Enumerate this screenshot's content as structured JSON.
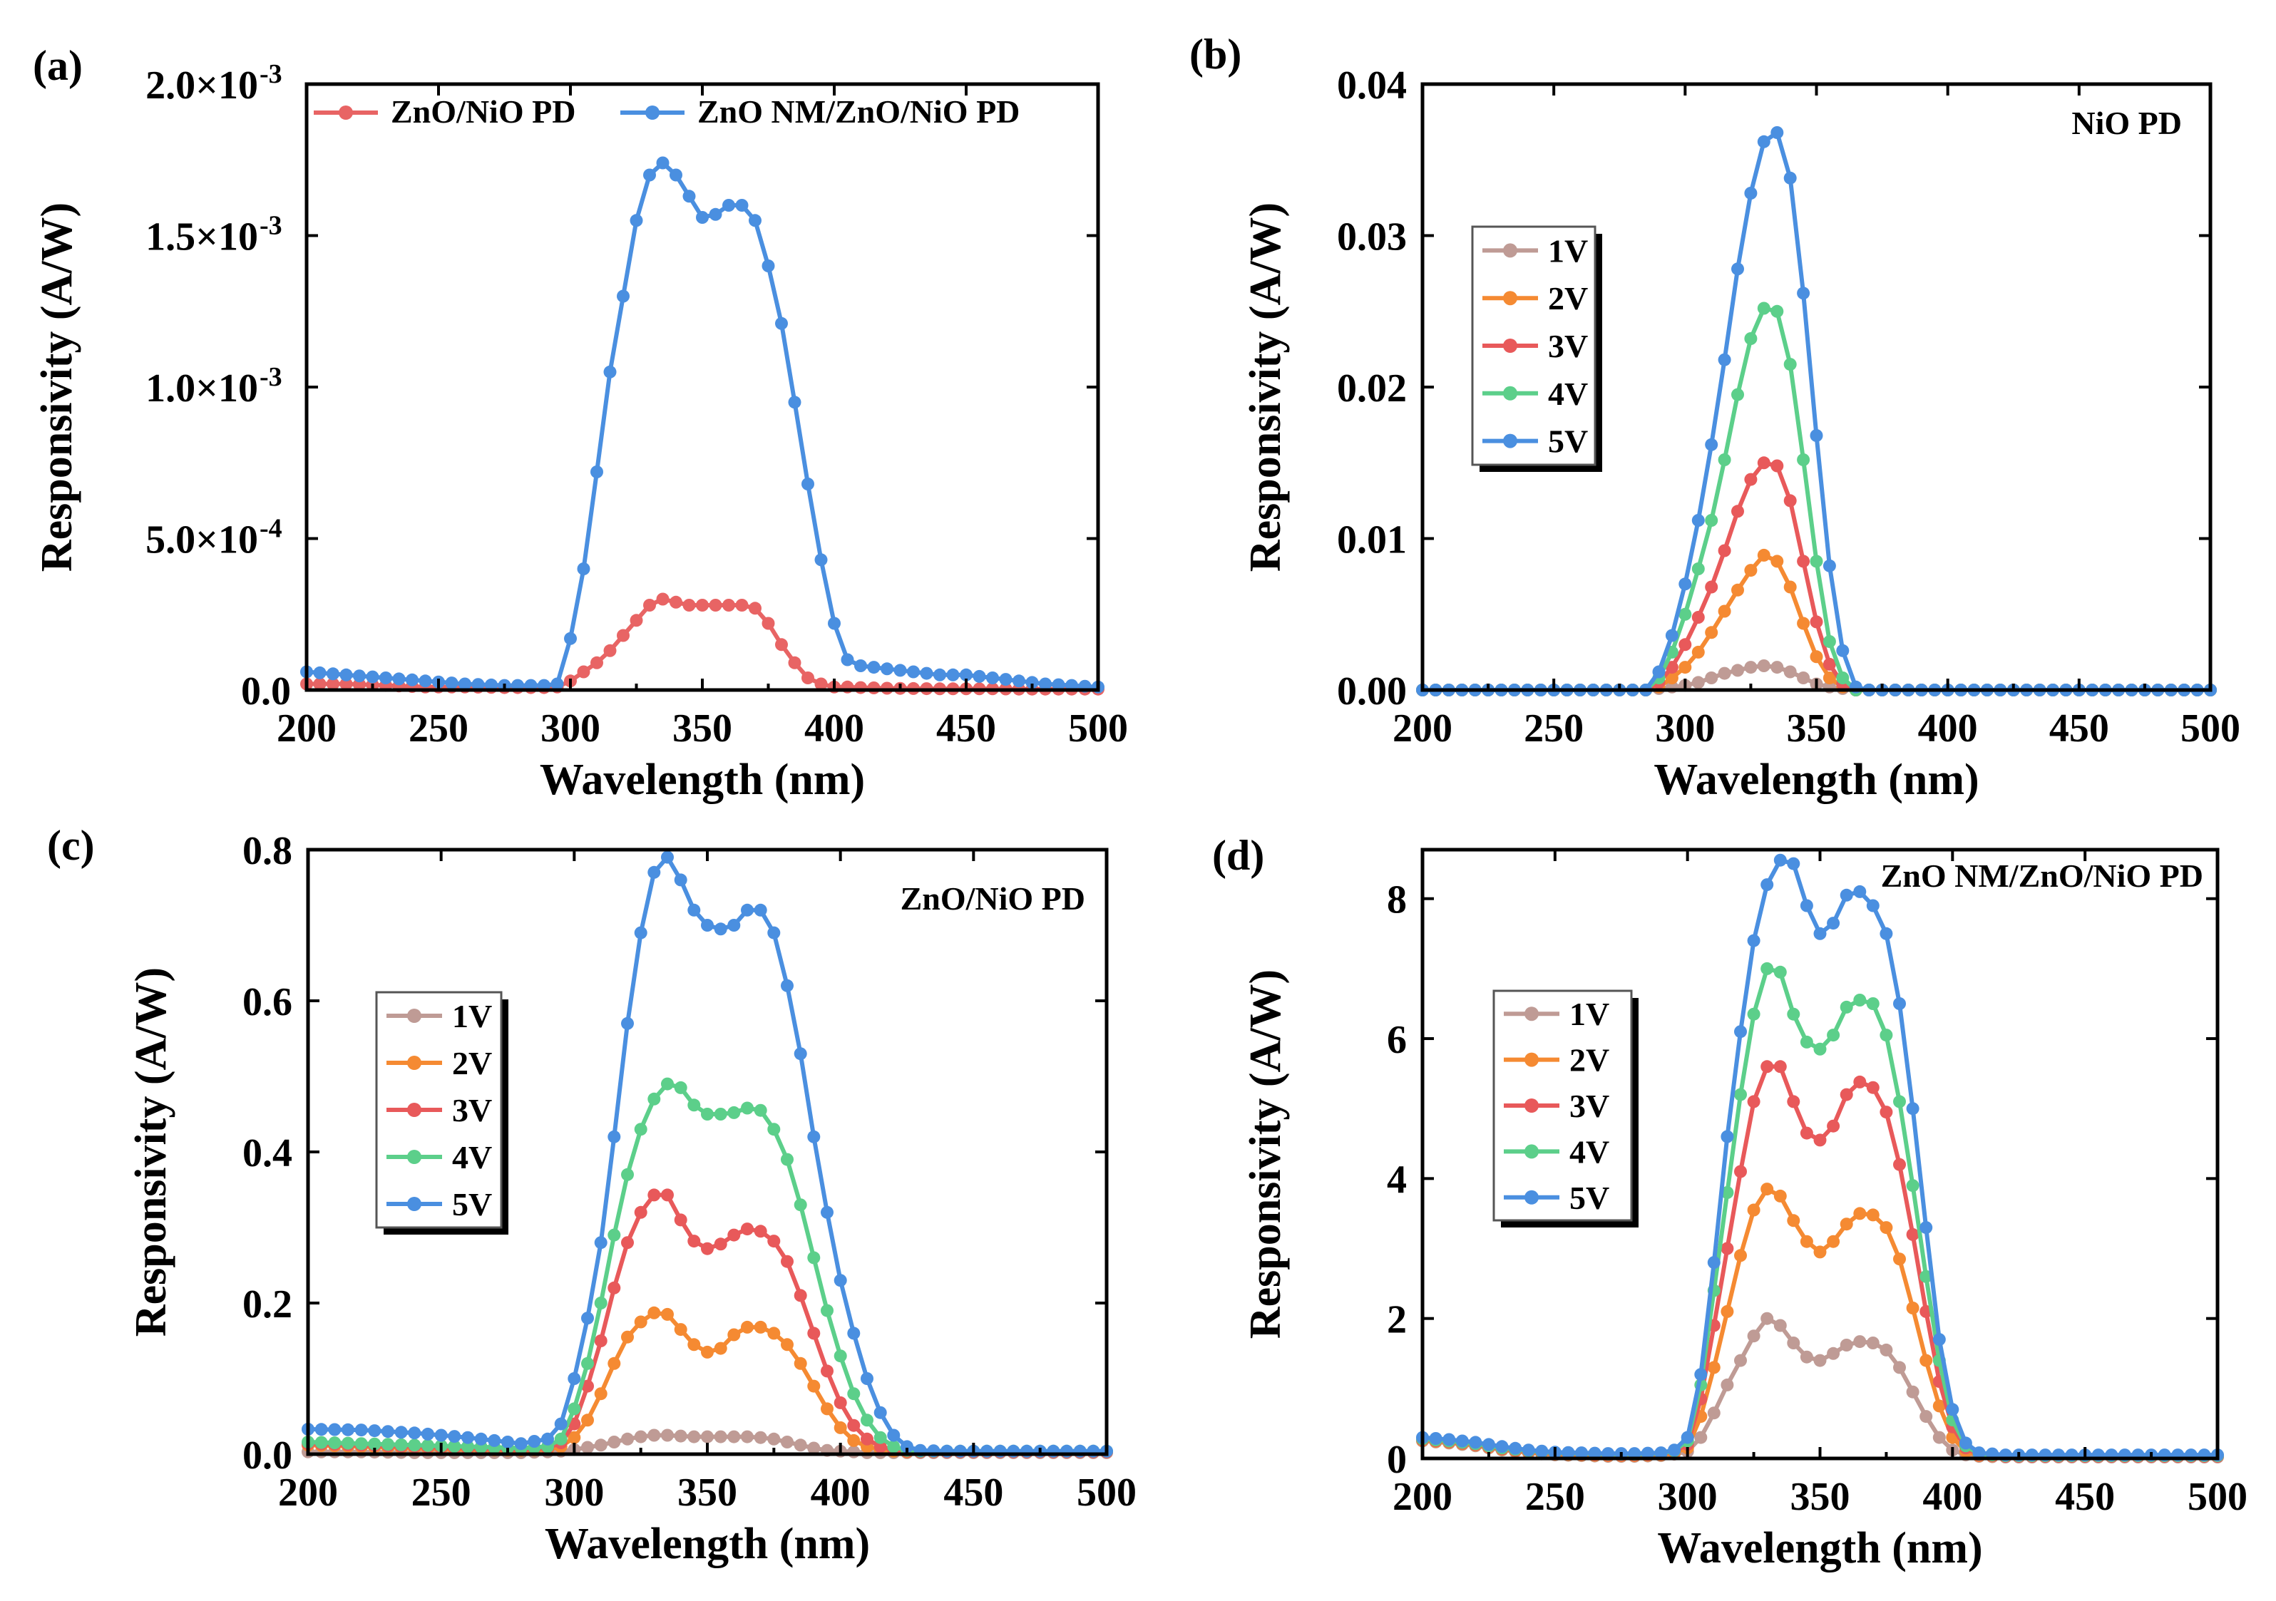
{
  "figure": {
    "panels": [
      {
        "label": "(a)",
        "xlabel": "Wavelength (nm)",
        "ylabel": "Responsivity (A/W)",
        "annotation": "",
        "xticks": [
          "200",
          "250",
          "300",
          "350",
          "400",
          "450",
          "500"
        ],
        "yticks": [
          "0.0",
          "5.0×10",
          "1.0×10",
          "1.5×10",
          "2.0×10"
        ],
        "ytick_exponents": [
          "",
          "-4",
          "-3",
          "-3",
          "-3"
        ],
        "legend": [
          "ZnO/NiO PD",
          "ZnO NM/ZnO/NiO PD"
        ]
      },
      {
        "label": "(b)",
        "xlabel": "Wavelength (nm)",
        "ylabel": "Responsivity (A/W)",
        "annotation": "NiO PD",
        "xticks": [
          "200",
          "250",
          "300",
          "350",
          "400",
          "450",
          "500"
        ],
        "yticks": [
          "0.00",
          "0.01",
          "0.02",
          "0.03",
          "0.04"
        ],
        "ytick_exponents": [
          "",
          "",
          "",
          "",
          ""
        ],
        "legend": [
          "1V",
          "2V",
          "3V",
          "4V",
          "5V"
        ]
      },
      {
        "label": "(c)",
        "xlabel": "Wavelength (nm)",
        "ylabel": "Responsivity (A/W)",
        "annotation": "ZnO/NiO PD",
        "xticks": [
          "200",
          "250",
          "300",
          "350",
          "400",
          "450",
          "500"
        ],
        "yticks": [
          "0.0",
          "0.2",
          "0.4",
          "0.6",
          "0.8"
        ],
        "ytick_exponents": [
          "",
          "",
          "",
          "",
          ""
        ],
        "legend": [
          "1V",
          "2V",
          "3V",
          "4V",
          "5V"
        ]
      },
      {
        "label": "(d)",
        "xlabel": "Wavelength (nm)",
        "ylabel": "Responsivity (A/W)",
        "annotation": "ZnO NM/ZnO/NiO PD",
        "xticks": [
          "200",
          "250",
          "300",
          "350",
          "400",
          "450",
          "500"
        ],
        "yticks": [
          "0",
          "2",
          "4",
          "6",
          "8"
        ],
        "ytick_exponents": [
          "",
          "",
          "",
          "",
          ""
        ],
        "legend": [
          "1V",
          "2V",
          "3V",
          "4V",
          "5V"
        ]
      }
    ]
  },
  "colors": {
    "1V": "#bf9b95",
    "2V": "#f58a32",
    "3V": "#e8595a",
    "4V": "#5ccf8a",
    "5V": "#4a8fe0",
    "ZnO/NiO PD": "#e86464",
    "ZnO NM/ZnO/NiO PD": "#4a8fe0"
  },
  "chart_data": [
    {
      "type": "line",
      "title": "(a)",
      "xlabel": "Wavelength (nm)",
      "ylabel": "Responsivity (A/W)",
      "xlim": [
        200,
        500
      ],
      "ylim": [
        0,
        0.002
      ],
      "x": [
        200,
        215,
        230,
        245,
        260,
        275,
        290,
        295,
        300,
        305,
        310,
        315,
        320,
        325,
        330,
        335,
        340,
        345,
        350,
        355,
        360,
        365,
        370,
        375,
        380,
        385,
        390,
        395,
        400,
        405,
        410,
        420,
        430,
        440,
        450,
        460,
        470,
        480,
        490,
        500
      ],
      "series": [
        {
          "name": "ZnO/NiO PD",
          "values": [
            2e-05,
            2e-05,
            1.5e-05,
            1e-05,
            1e-05,
            8e-06,
            8e-06,
            1e-05,
            3e-05,
            6e-05,
            9e-05,
            0.00013,
            0.00018,
            0.00023,
            0.00028,
            0.0003,
            0.00029,
            0.00028,
            0.00028,
            0.00028,
            0.00028,
            0.00028,
            0.00027,
            0.00022,
            0.00015,
            9e-05,
            4e-05,
            2e-05,
            1e-05,
            1e-05,
            8e-06,
            6e-06,
            5e-06,
            4e-06,
            4e-06,
            4e-06,
            3e-06,
            3e-06,
            3e-06,
            3e-06
          ]
        },
        {
          "name": "ZnO NM/ZnO/NiO PD",
          "values": [
            6e-05,
            5e-05,
            4e-05,
            3e-05,
            2e-05,
            1.5e-05,
            1.5e-05,
            2e-05,
            0.00017,
            0.0004,
            0.00072,
            0.00105,
            0.0013,
            0.00155,
            0.0017,
            0.00174,
            0.0017,
            0.00163,
            0.00156,
            0.00157,
            0.0016,
            0.0016,
            0.00155,
            0.0014,
            0.00121,
            0.00095,
            0.00068,
            0.00043,
            0.00022,
            0.0001,
            8e-05,
            7e-05,
            6e-05,
            5e-05,
            5e-05,
            4e-05,
            3e-05,
            2e-05,
            1.5e-05,
            1e-05
          ]
        }
      ]
    },
    {
      "type": "line",
      "title": "(b) NiO PD",
      "xlabel": "Wavelength (nm)",
      "ylabel": "Responsivity (A/W)",
      "xlim": [
        200,
        500
      ],
      "ylim": [
        0,
        0.04
      ],
      "x": [
        200,
        230,
        260,
        285,
        290,
        295,
        300,
        305,
        310,
        315,
        320,
        325,
        330,
        335,
        340,
        345,
        350,
        355,
        360,
        365,
        370,
        400,
        430,
        460,
        500
      ],
      "series": [
        {
          "name": "1V",
          "values": [
            0,
            0,
            0,
            0,
            0.0001,
            0.0002,
            0.0003,
            0.0005,
            0.0008,
            0.0011,
            0.0013,
            0.0015,
            0.0016,
            0.0015,
            0.0012,
            0.0008,
            0.0004,
            0.0002,
            0.0001,
            0,
            0,
            0,
            0,
            0,
            0
          ]
        },
        {
          "name": "2V",
          "values": [
            0,
            0,
            0,
            0,
            0.0002,
            0.0008,
            0.0015,
            0.0025,
            0.0038,
            0.0052,
            0.0066,
            0.0079,
            0.0089,
            0.0085,
            0.0068,
            0.0044,
            0.0022,
            0.0008,
            0.0002,
            0,
            0,
            0,
            0,
            0,
            0
          ]
        },
        {
          "name": "3V",
          "values": [
            0,
            0,
            0,
            0,
            0.0005,
            0.0015,
            0.003,
            0.0048,
            0.0068,
            0.0092,
            0.0118,
            0.0139,
            0.015,
            0.0148,
            0.0125,
            0.0085,
            0.0045,
            0.0017,
            0.0004,
            0,
            0,
            0,
            0,
            0,
            0
          ]
        },
        {
          "name": "4V",
          "values": [
            0,
            0,
            0,
            0,
            0.0008,
            0.0025,
            0.005,
            0.008,
            0.0112,
            0.0152,
            0.0195,
            0.0232,
            0.0252,
            0.025,
            0.0215,
            0.0152,
            0.0085,
            0.0032,
            0.0008,
            0,
            0,
            0,
            0,
            0,
            0
          ]
        },
        {
          "name": "5V",
          "values": [
            0,
            0,
            0,
            0,
            0.0012,
            0.0036,
            0.007,
            0.0112,
            0.0162,
            0.0218,
            0.0278,
            0.0328,
            0.0362,
            0.0368,
            0.0338,
            0.0262,
            0.0168,
            0.0082,
            0.0026,
            0.0002,
            0,
            0,
            0,
            0,
            0
          ]
        }
      ]
    },
    {
      "type": "line",
      "title": "(c) ZnO/NiO PD",
      "xlabel": "Wavelength (nm)",
      "ylabel": "Responsivity (A/W)",
      "xlim": [
        200,
        500
      ],
      "ylim": [
        0,
        0.8
      ],
      "x": [
        200,
        220,
        240,
        260,
        280,
        290,
        295,
        300,
        305,
        310,
        315,
        320,
        325,
        330,
        335,
        340,
        345,
        350,
        355,
        360,
        365,
        370,
        375,
        380,
        385,
        390,
        395,
        400,
        405,
        410,
        415,
        420,
        425,
        430,
        440,
        460,
        480,
        500
      ],
      "series": [
        {
          "name": "1V",
          "values": [
            0.003,
            0.003,
            0.002,
            0.002,
            0.002,
            0.003,
            0.004,
            0.006,
            0.009,
            0.012,
            0.016,
            0.02,
            0.023,
            0.025,
            0.025,
            0.024,
            0.023,
            0.023,
            0.023,
            0.023,
            0.023,
            0.022,
            0.02,
            0.016,
            0.012,
            0.008,
            0.005,
            0.004,
            0.003,
            0.002,
            0.002,
            0.002,
            0.002,
            0.002,
            0.002,
            0.002,
            0.002,
            0.002
          ]
        },
        {
          "name": "2V",
          "values": [
            0.012,
            0.01,
            0.008,
            0.006,
            0.005,
            0.006,
            0.01,
            0.022,
            0.045,
            0.08,
            0.12,
            0.155,
            0.175,
            0.187,
            0.185,
            0.165,
            0.145,
            0.135,
            0.14,
            0.158,
            0.168,
            0.168,
            0.16,
            0.145,
            0.12,
            0.09,
            0.06,
            0.035,
            0.018,
            0.01,
            0.006,
            0.004,
            0.003,
            0.003,
            0.003,
            0.003,
            0.003,
            0.003
          ]
        },
        {
          "name": "3V",
          "values": [
            0.014,
            0.012,
            0.01,
            0.008,
            0.006,
            0.008,
            0.015,
            0.04,
            0.09,
            0.15,
            0.22,
            0.28,
            0.32,
            0.343,
            0.343,
            0.31,
            0.282,
            0.272,
            0.278,
            0.29,
            0.298,
            0.295,
            0.282,
            0.255,
            0.21,
            0.16,
            0.11,
            0.068,
            0.038,
            0.02,
            0.01,
            0.006,
            0.004,
            0.003,
            0.003,
            0.003,
            0.003,
            0.003
          ]
        },
        {
          "name": "4V",
          "values": [
            0.016,
            0.014,
            0.012,
            0.01,
            0.008,
            0.01,
            0.02,
            0.06,
            0.12,
            0.2,
            0.29,
            0.37,
            0.43,
            0.47,
            0.49,
            0.485,
            0.462,
            0.45,
            0.45,
            0.452,
            0.458,
            0.455,
            0.43,
            0.39,
            0.33,
            0.26,
            0.19,
            0.13,
            0.08,
            0.045,
            0.022,
            0.01,
            0.005,
            0.004,
            0.004,
            0.004,
            0.004,
            0.004
          ]
        },
        {
          "name": "5V",
          "values": [
            0.033,
            0.032,
            0.028,
            0.022,
            0.014,
            0.02,
            0.04,
            0.1,
            0.18,
            0.28,
            0.42,
            0.57,
            0.69,
            0.77,
            0.79,
            0.76,
            0.72,
            0.7,
            0.695,
            0.7,
            0.72,
            0.72,
            0.69,
            0.62,
            0.53,
            0.42,
            0.32,
            0.23,
            0.16,
            0.1,
            0.055,
            0.025,
            0.01,
            0.005,
            0.004,
            0.004,
            0.004,
            0.004
          ]
        }
      ]
    },
    {
      "type": "line",
      "title": "(d) ZnO NM/ZnO/NiO PD",
      "xlabel": "Wavelength (nm)",
      "ylabel": "Responsivity (A/W)",
      "xlim": [
        200,
        500
      ],
      "ylim": [
        0,
        8.7
      ],
      "x": [
        200,
        210,
        220,
        230,
        240,
        250,
        260,
        270,
        280,
        290,
        295,
        300,
        305,
        310,
        315,
        320,
        325,
        330,
        335,
        340,
        345,
        350,
        355,
        360,
        365,
        370,
        375,
        380,
        385,
        390,
        395,
        400,
        405,
        410,
        420,
        440,
        460,
        480,
        500
      ],
      "series": [
        {
          "name": "1V",
          "values": [
            0.25,
            0.22,
            0.18,
            0.12,
            0.08,
            0.05,
            0.04,
            0.03,
            0.03,
            0.04,
            0.06,
            0.1,
            0.3,
            0.65,
            1.05,
            1.4,
            1.75,
            2.0,
            1.9,
            1.65,
            1.45,
            1.4,
            1.5,
            1.62,
            1.67,
            1.65,
            1.55,
            1.3,
            0.95,
            0.6,
            0.3,
            0.12,
            0.05,
            0.03,
            0.02,
            0.02,
            0.02,
            0.02,
            0.02
          ]
        },
        {
          "name": "2V",
          "values": [
            0.26,
            0.23,
            0.19,
            0.13,
            0.09,
            0.06,
            0.05,
            0.04,
            0.04,
            0.05,
            0.08,
            0.15,
            0.6,
            1.3,
            2.1,
            2.9,
            3.55,
            3.85,
            3.75,
            3.4,
            3.1,
            2.95,
            3.1,
            3.35,
            3.5,
            3.48,
            3.3,
            2.85,
            2.15,
            1.4,
            0.75,
            0.3,
            0.1,
            0.04,
            0.03,
            0.03,
            0.03,
            0.03,
            0.03
          ]
        },
        {
          "name": "3V",
          "values": [
            0.27,
            0.24,
            0.2,
            0.14,
            0.1,
            0.07,
            0.06,
            0.05,
            0.05,
            0.06,
            0.1,
            0.2,
            0.85,
            1.9,
            3.0,
            4.1,
            5.1,
            5.6,
            5.6,
            5.1,
            4.65,
            4.55,
            4.75,
            5.2,
            5.38,
            5.3,
            4.95,
            4.2,
            3.2,
            2.1,
            1.1,
            0.45,
            0.15,
            0.05,
            0.03,
            0.03,
            0.03,
            0.03,
            0.03
          ]
        },
        {
          "name": "4V",
          "values": [
            0.28,
            0.25,
            0.21,
            0.15,
            0.11,
            0.08,
            0.07,
            0.06,
            0.06,
            0.07,
            0.11,
            0.25,
            1.05,
            2.4,
            3.8,
            5.2,
            6.35,
            7.0,
            6.95,
            6.35,
            5.95,
            5.85,
            6.05,
            6.45,
            6.55,
            6.5,
            6.05,
            5.1,
            3.9,
            2.6,
            1.4,
            0.55,
            0.18,
            0.06,
            0.04,
            0.04,
            0.04,
            0.04,
            0.04
          ]
        },
        {
          "name": "5V",
          "values": [
            0.3,
            0.27,
            0.23,
            0.17,
            0.12,
            0.09,
            0.08,
            0.07,
            0.07,
            0.08,
            0.12,
            0.3,
            1.2,
            2.8,
            4.6,
            6.1,
            7.4,
            8.2,
            8.55,
            8.5,
            7.9,
            7.5,
            7.65,
            8.05,
            8.1,
            7.9,
            7.5,
            6.5,
            5.0,
            3.3,
            1.7,
            0.7,
            0.22,
            0.08,
            0.05,
            0.05,
            0.05,
            0.05,
            0.05
          ]
        }
      ]
    }
  ]
}
